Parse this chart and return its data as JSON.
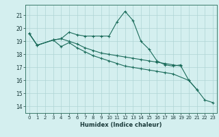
{
  "line1_x": [
    0,
    1,
    3,
    4,
    5,
    6,
    7,
    8,
    9,
    10,
    11,
    12,
    13,
    14,
    15,
    16,
    17,
    18,
    19
  ],
  "line1_y": [
    19.6,
    18.7,
    19.1,
    19.2,
    19.7,
    19.5,
    19.4,
    19.4,
    19.4,
    19.4,
    20.5,
    21.3,
    20.6,
    19.0,
    18.4,
    17.5,
    17.2,
    17.1,
    17.2
  ],
  "line2_x": [
    0,
    1,
    3,
    4,
    5,
    6,
    7,
    8,
    9,
    10,
    11,
    12,
    13,
    14,
    15,
    16,
    17,
    18,
    19,
    20,
    21
  ],
  "line2_y": [
    19.6,
    18.7,
    19.1,
    19.2,
    19.0,
    18.8,
    18.5,
    18.3,
    18.1,
    18.0,
    17.9,
    17.8,
    17.7,
    17.6,
    17.5,
    17.4,
    17.3,
    17.2,
    17.1,
    16.0,
    15.3
  ],
  "line3_x": [
    0,
    1,
    3,
    4,
    5,
    6,
    7,
    8,
    9,
    10,
    11,
    12,
    13,
    14,
    15,
    16,
    17,
    18,
    20,
    21,
    22,
    23
  ],
  "line3_y": [
    19.6,
    18.7,
    19.1,
    18.6,
    18.9,
    18.5,
    18.2,
    17.9,
    17.7,
    17.5,
    17.3,
    17.1,
    17.0,
    16.9,
    16.8,
    16.7,
    16.6,
    16.5,
    16.0,
    15.3,
    14.5,
    14.3
  ],
  "bg_color": "#d4efef",
  "grid_color": "#aed4d4",
  "line_color": "#1a6b5a",
  "xlabel": "Humidex (Indice chaleur)",
  "ylim": [
    13.5,
    21.8
  ],
  "xlim": [
    -0.5,
    23.5
  ],
  "yticks": [
    14,
    15,
    16,
    17,
    18,
    19,
    20,
    21
  ],
  "xticks": [
    0,
    1,
    2,
    3,
    4,
    5,
    6,
    7,
    8,
    9,
    10,
    11,
    12,
    13,
    14,
    15,
    16,
    17,
    18,
    19,
    20,
    21,
    22,
    23
  ]
}
